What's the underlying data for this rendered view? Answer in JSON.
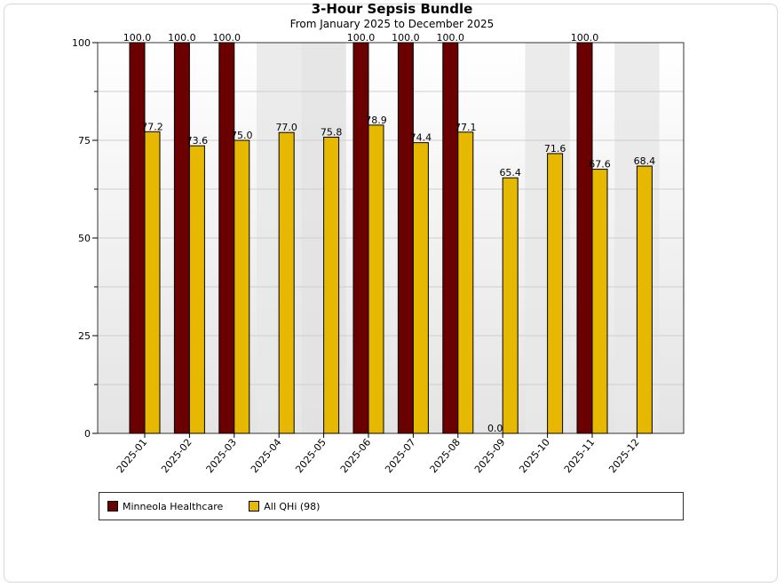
{
  "chart_data": {
    "type": "bar",
    "title": "3-Hour Sepsis Bundle",
    "subtitle": "From January 2025 to December 2025",
    "categories": [
      "2025-01",
      "2025-02",
      "2025-03",
      "2025-04",
      "2025-05",
      "2025-06",
      "2025-07",
      "2025-08",
      "2025-09",
      "2025-10",
      "2025-11",
      "2025-12"
    ],
    "series": [
      {
        "name": "Minneola Healthcare",
        "color": "#6b0000",
        "values": [
          100.0,
          100.0,
          100.0,
          null,
          null,
          100.0,
          100.0,
          100.0,
          0.0,
          null,
          100.0,
          null
        ]
      },
      {
        "name": "All QHi (98)",
        "color": "#e6b800",
        "values": [
          77.2,
          73.6,
          75.0,
          77.0,
          75.8,
          78.9,
          74.4,
          77.1,
          65.4,
          71.6,
          67.6,
          68.4
        ]
      }
    ],
    "ylim": [
      0,
      100
    ],
    "yticks": [
      0,
      25,
      50,
      75,
      100
    ],
    "grid": true,
    "legend": "bottom",
    "shaded_categories": [
      "2025-04",
      "2025-05",
      "2025-10",
      "2025-12"
    ]
  }
}
